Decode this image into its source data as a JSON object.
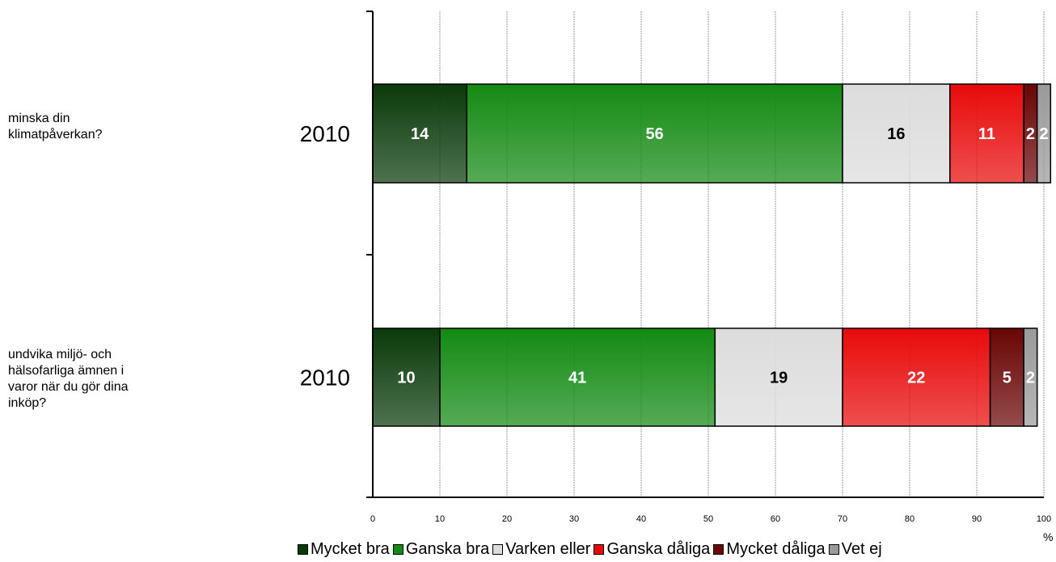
{
  "chart_data": {
    "type": "bar",
    "orientation": "horizontal",
    "stacked": true,
    "categories": [
      {
        "question": "minska din\nklimatpåverkan?",
        "year": "2010"
      },
      {
        "question": "undvika miljö- och\nhälsofarliga ämnen i\nvaror när du gör dina\ninköp?",
        "year": "2010"
      }
    ],
    "series": [
      {
        "name": "Mycket bra",
        "color": "#0a3a0a",
        "label_color": "#ffffff",
        "values": [
          14,
          10
        ]
      },
      {
        "name": "Ganska bra",
        "color": "#138a13",
        "label_color": "#ffffff",
        "values": [
          56,
          41
        ]
      },
      {
        "name": "Varken eller",
        "color": "#dcdcdc",
        "label_color": "#000000",
        "values": [
          16,
          19
        ]
      },
      {
        "name": "Ganska dåliga",
        "color": "#e80a0a",
        "label_color": "#ffffff",
        "values": [
          11,
          22
        ]
      },
      {
        "name": "Mycket dåliga",
        "color": "#6a0505",
        "label_color": "#ffffff",
        "values": [
          2,
          5
        ]
      },
      {
        "name": "Vet ej",
        "color": "#9a9a9a",
        "label_color": "#ffffff",
        "values": [
          2,
          2
        ]
      }
    ],
    "xlim": [
      0,
      100
    ],
    "xticks": [
      "0",
      "10",
      "20",
      "30",
      "40",
      "50",
      "60",
      "70",
      "80",
      "90",
      "100"
    ],
    "xunit": "%",
    "grid": "vertical",
    "legend_position": "bottom"
  }
}
